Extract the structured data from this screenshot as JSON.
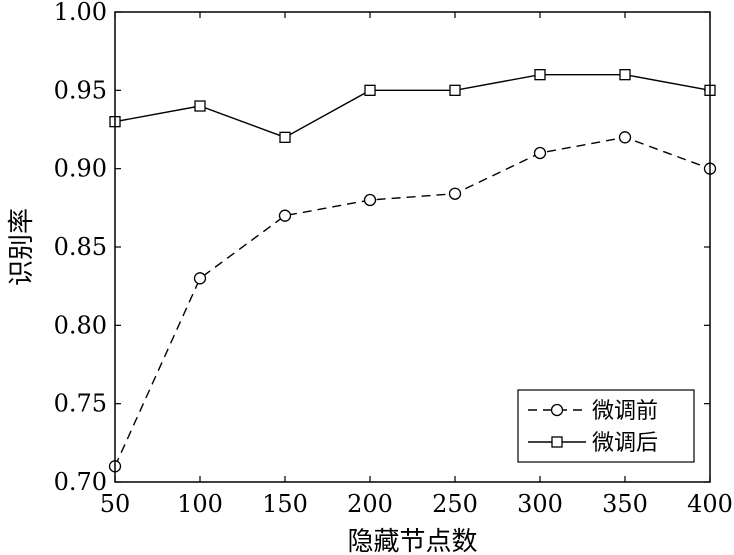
{
  "chart_data": {
    "type": "line",
    "xlabel": "隐藏节点数",
    "ylabel": "识别率",
    "x": [
      50,
      100,
      150,
      200,
      250,
      300,
      350,
      400
    ],
    "xlim": [
      50,
      400
    ],
    "ylim": [
      0.7,
      1.0
    ],
    "x_ticks": [
      "50",
      "100",
      "150",
      "200",
      "250",
      "300",
      "350",
      "400"
    ],
    "y_ticks": [
      "0.70",
      "0.75",
      "0.80",
      "0.85",
      "0.90",
      "0.95",
      "1.00"
    ],
    "grid": false,
    "legend_position": "bottom-right",
    "series": [
      {
        "name": "微调前",
        "values": [
          0.71,
          0.83,
          0.87,
          0.88,
          0.884,
          0.91,
          0.92,
          0.9
        ],
        "marker": "circle",
        "line_style": "dashed",
        "color": "#000000"
      },
      {
        "name": "微调后",
        "values": [
          0.93,
          0.94,
          0.92,
          0.95,
          0.95,
          0.96,
          0.96,
          0.95
        ],
        "marker": "square",
        "line_style": "solid",
        "color": "#000000"
      }
    ]
  }
}
